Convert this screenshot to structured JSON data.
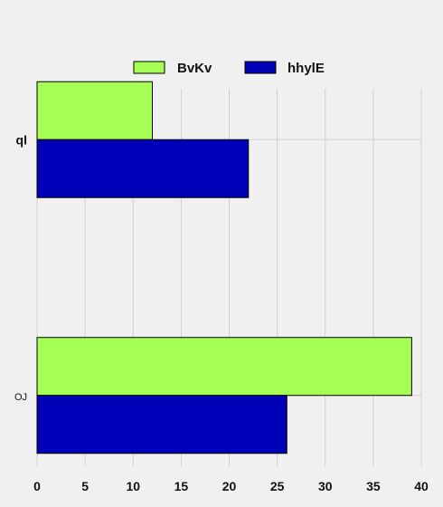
{
  "chart_data": {
    "type": "bar",
    "orientation": "horizontal",
    "categories": [
      "ql",
      "OJ"
    ],
    "series": [
      {
        "name": "BvKv",
        "color": "#a6ff55",
        "values": [
          12,
          39
        ]
      },
      {
        "name": "hhylE",
        "color": "#0000b8",
        "values": [
          22,
          26
        ]
      }
    ],
    "xlim": [
      0,
      40
    ],
    "xticks": [
      0,
      5,
      10,
      15,
      20,
      25,
      30,
      35,
      40
    ],
    "title": "",
    "xlabel": "",
    "ylabel": "",
    "grid": true,
    "legend_position": "top-center"
  }
}
